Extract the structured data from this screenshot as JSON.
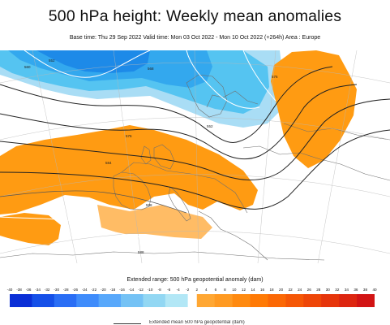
{
  "title": "500 hPa height: Weekly mean anomalies",
  "subtitle": "Base time: Thu 29 Sep 2022 Valid time: Mon 03 Oct 2022 - Mon 10 Oct 2022 (+264h) Area : Europe",
  "map": {
    "contour_labels": [
      "552",
      "560",
      "568",
      "576",
      "584",
      "588",
      "576",
      "552",
      "588"
    ]
  },
  "legend": {
    "title": "Extended range: 500 hPa geopotential anomaly (dam)",
    "ticks": [
      "-40",
      "-38",
      "-36",
      "-34",
      "-32",
      "-30",
      "-28",
      "-26",
      "-24",
      "-22",
      "-20",
      "-18",
      "-16",
      "-14",
      "-12",
      "-10",
      "-8",
      "-6",
      "-4",
      "-2",
      "2",
      "4",
      "6",
      "8",
      "10",
      "12",
      "14",
      "16",
      "18",
      "20",
      "22",
      "24",
      "26",
      "28",
      "30",
      "32",
      "34",
      "36",
      "38",
      "40"
    ],
    "negative_colors": [
      "#0a2fd6",
      "#1550e8",
      "#2a6ef5",
      "#3f8cfb",
      "#58a8fb",
      "#74c2f5",
      "#92d7f3",
      "#b2e7f6"
    ],
    "positive_colors": [
      "#ffa733",
      "#ff9a22",
      "#ff8a10",
      "#ff7a05",
      "#fb6805",
      "#f55706",
      "#ee4608",
      "#e6350b",
      "#dd2610",
      "#d21414"
    ],
    "footer_label": "Extended mean 500 hPa geopotential (dam)"
  }
}
